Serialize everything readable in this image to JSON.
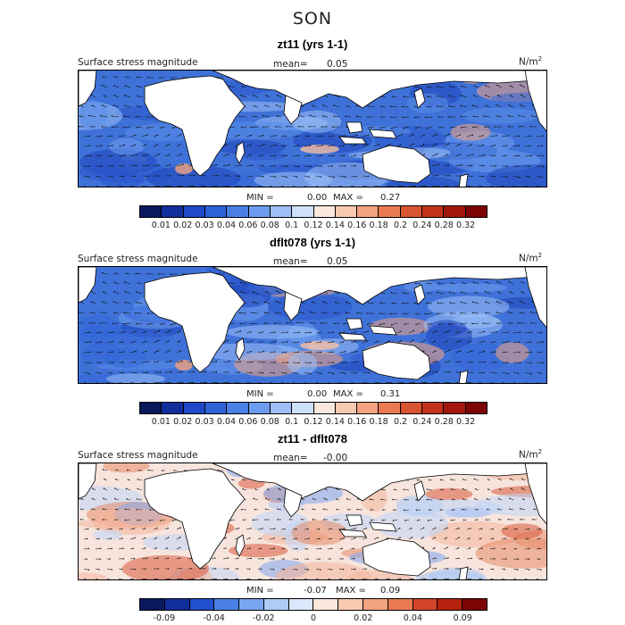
{
  "season": "SON",
  "units_base": "N/m",
  "units_exp": "2",
  "colors": {
    "ocean_base": "#3f72d8",
    "land": "#ffffff",
    "diff_base": "#f6e4dd"
  },
  "chart_data": [
    {
      "type": "heatmap",
      "title": "zt11 (yrs 1-1)",
      "subtitle": "Surface stress magnitude",
      "mean_label": "mean=",
      "mean_value": "0.05",
      "units": "N/m²",
      "min_label": "MIN =",
      "min_value": "0.00",
      "max_label": "MAX =",
      "max_value": "0.27",
      "colorbar_ticks": [
        "0.01",
        "0.02",
        "0.03",
        "0.04",
        "0.06",
        "0.08",
        "0.1",
        "0.12",
        "0.14",
        "0.16",
        "0.18",
        "0.2",
        "0.24",
        "0.28",
        "0.32"
      ],
      "colorbar_colors": [
        "#08195e",
        "#102e9c",
        "#1e49c8",
        "#2e63d8",
        "#4a80e6",
        "#6d9cee",
        "#9dbff5",
        "#cfe0fa",
        "#fbe7dc",
        "#f8c9b1",
        "#f3a380",
        "#ea7a52",
        "#d95430",
        "#c2331a",
        "#a3180c",
        "#7d0505"
      ]
    },
    {
      "type": "heatmap",
      "title": "dflt078 (yrs 1-1)",
      "subtitle": "Surface stress magnitude",
      "mean_label": "mean=",
      "mean_value": "0.05",
      "units": "N/m²",
      "min_label": "MIN =",
      "min_value": "0.00",
      "max_label": "MAX =",
      "max_value": "0.31",
      "colorbar_ticks": [
        "0.01",
        "0.02",
        "0.03",
        "0.04",
        "0.06",
        "0.08",
        "0.1",
        "0.12",
        "0.14",
        "0.16",
        "0.18",
        "0.2",
        "0.24",
        "0.28",
        "0.32"
      ],
      "colorbar_colors": [
        "#08195e",
        "#102e9c",
        "#1e49c8",
        "#2e63d8",
        "#4a80e6",
        "#6d9cee",
        "#9dbff5",
        "#cfe0fa",
        "#fbe7dc",
        "#f8c9b1",
        "#f3a380",
        "#ea7a52",
        "#d95430",
        "#c2331a",
        "#a3180c",
        "#7d0505"
      ]
    },
    {
      "type": "heatmap",
      "title": "zt11 - dflt078",
      "subtitle": "Surface stress magnitude",
      "mean_label": "mean=",
      "mean_value": "-0.00",
      "units": "N/m²",
      "min_label": "MIN =",
      "min_value": "-0.07",
      "max_label": "MAX =",
      "max_value": "0.09",
      "colorbar_ticks": [
        "-0.09",
        "",
        "-0.04",
        "",
        "-0.02",
        "",
        "0",
        "",
        "0.02",
        "",
        "0.04",
        "",
        "0.09"
      ],
      "colorbar_colors": [
        "#08195e",
        "#102e9c",
        "#2250cc",
        "#4a80e6",
        "#7aa5ef",
        "#aecbf6",
        "#dbe8fb",
        "#fbe7dc",
        "#f8c9b1",
        "#f3a380",
        "#ea7a52",
        "#d3452a",
        "#b5220f",
        "#7d0505"
      ]
    }
  ]
}
